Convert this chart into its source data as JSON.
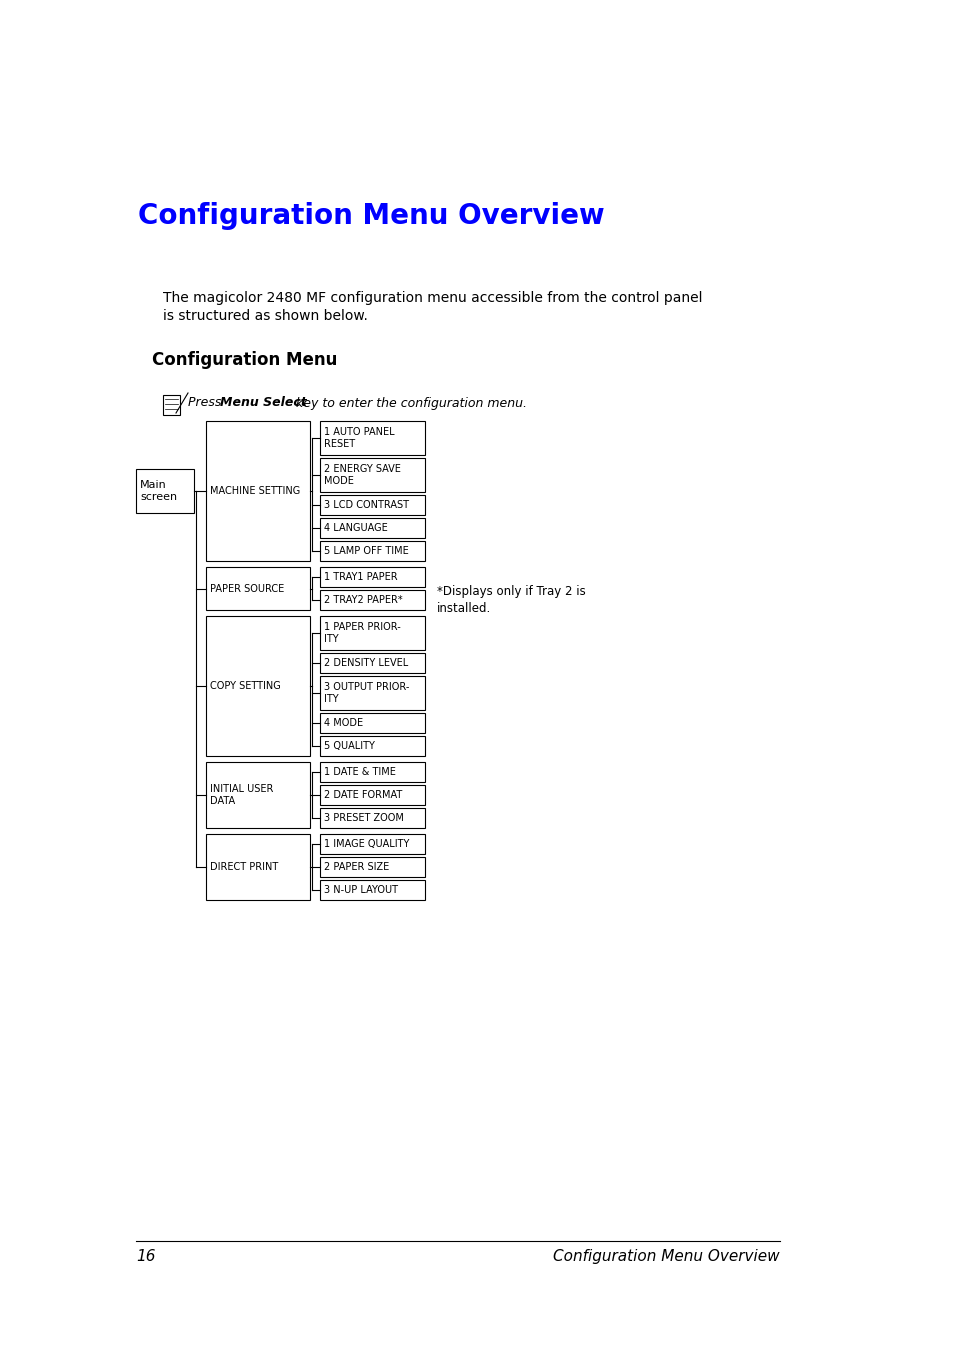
{
  "title": "Configuration Menu Overview",
  "title_color": "#0000FF",
  "title_fontsize": 20,
  "subtitle": "The magicolor 2480 MF configuration menu accessible from the control panel\nis structured as shown below.",
  "subtitle_fontsize": 10,
  "section_title": "Configuration Menu",
  "section_fontsize": 12,
  "page_number": "16",
  "page_footer": "Configuration Menu Overview",
  "bg_color": "#ffffff",
  "text_color": "#000000",
  "menu_structure": {
    "main_label": "Main\nscreen",
    "categories": [
      {
        "name": "MACHINE SETTING",
        "items": [
          "1 AUTO PANEL\nRESET",
          "2 ENERGY SAVE\nMODE",
          "3 LCD CONTRAST",
          "4 LANGUAGE",
          "5 LAMP OFF TIME"
        ]
      },
      {
        "name": "PAPER SOURCE",
        "items": [
          "1 TRAY1 PAPER",
          "2 TRAY2 PAPER*"
        ],
        "note": "*Displays only if Tray 2 is\ninstalled."
      },
      {
        "name": "COPY SETTING",
        "items": [
          "1 PAPER PRIOR-\nITY",
          "2 DENSITY LEVEL",
          "3 OUTPUT PRIOR-\nITY",
          "4 MODE",
          "5 QUALITY"
        ]
      },
      {
        "name": "INITIAL USER\nDATA",
        "items": [
          "1 DATE & TIME",
          "2 DATE FORMAT",
          "3 PRESET ZOOM"
        ]
      },
      {
        "name": "DIRECT PRINT",
        "items": [
          "1 IMAGE QUALITY",
          "2 PAPER SIZE",
          "3 N-UP LAYOUT"
        ]
      }
    ]
  }
}
